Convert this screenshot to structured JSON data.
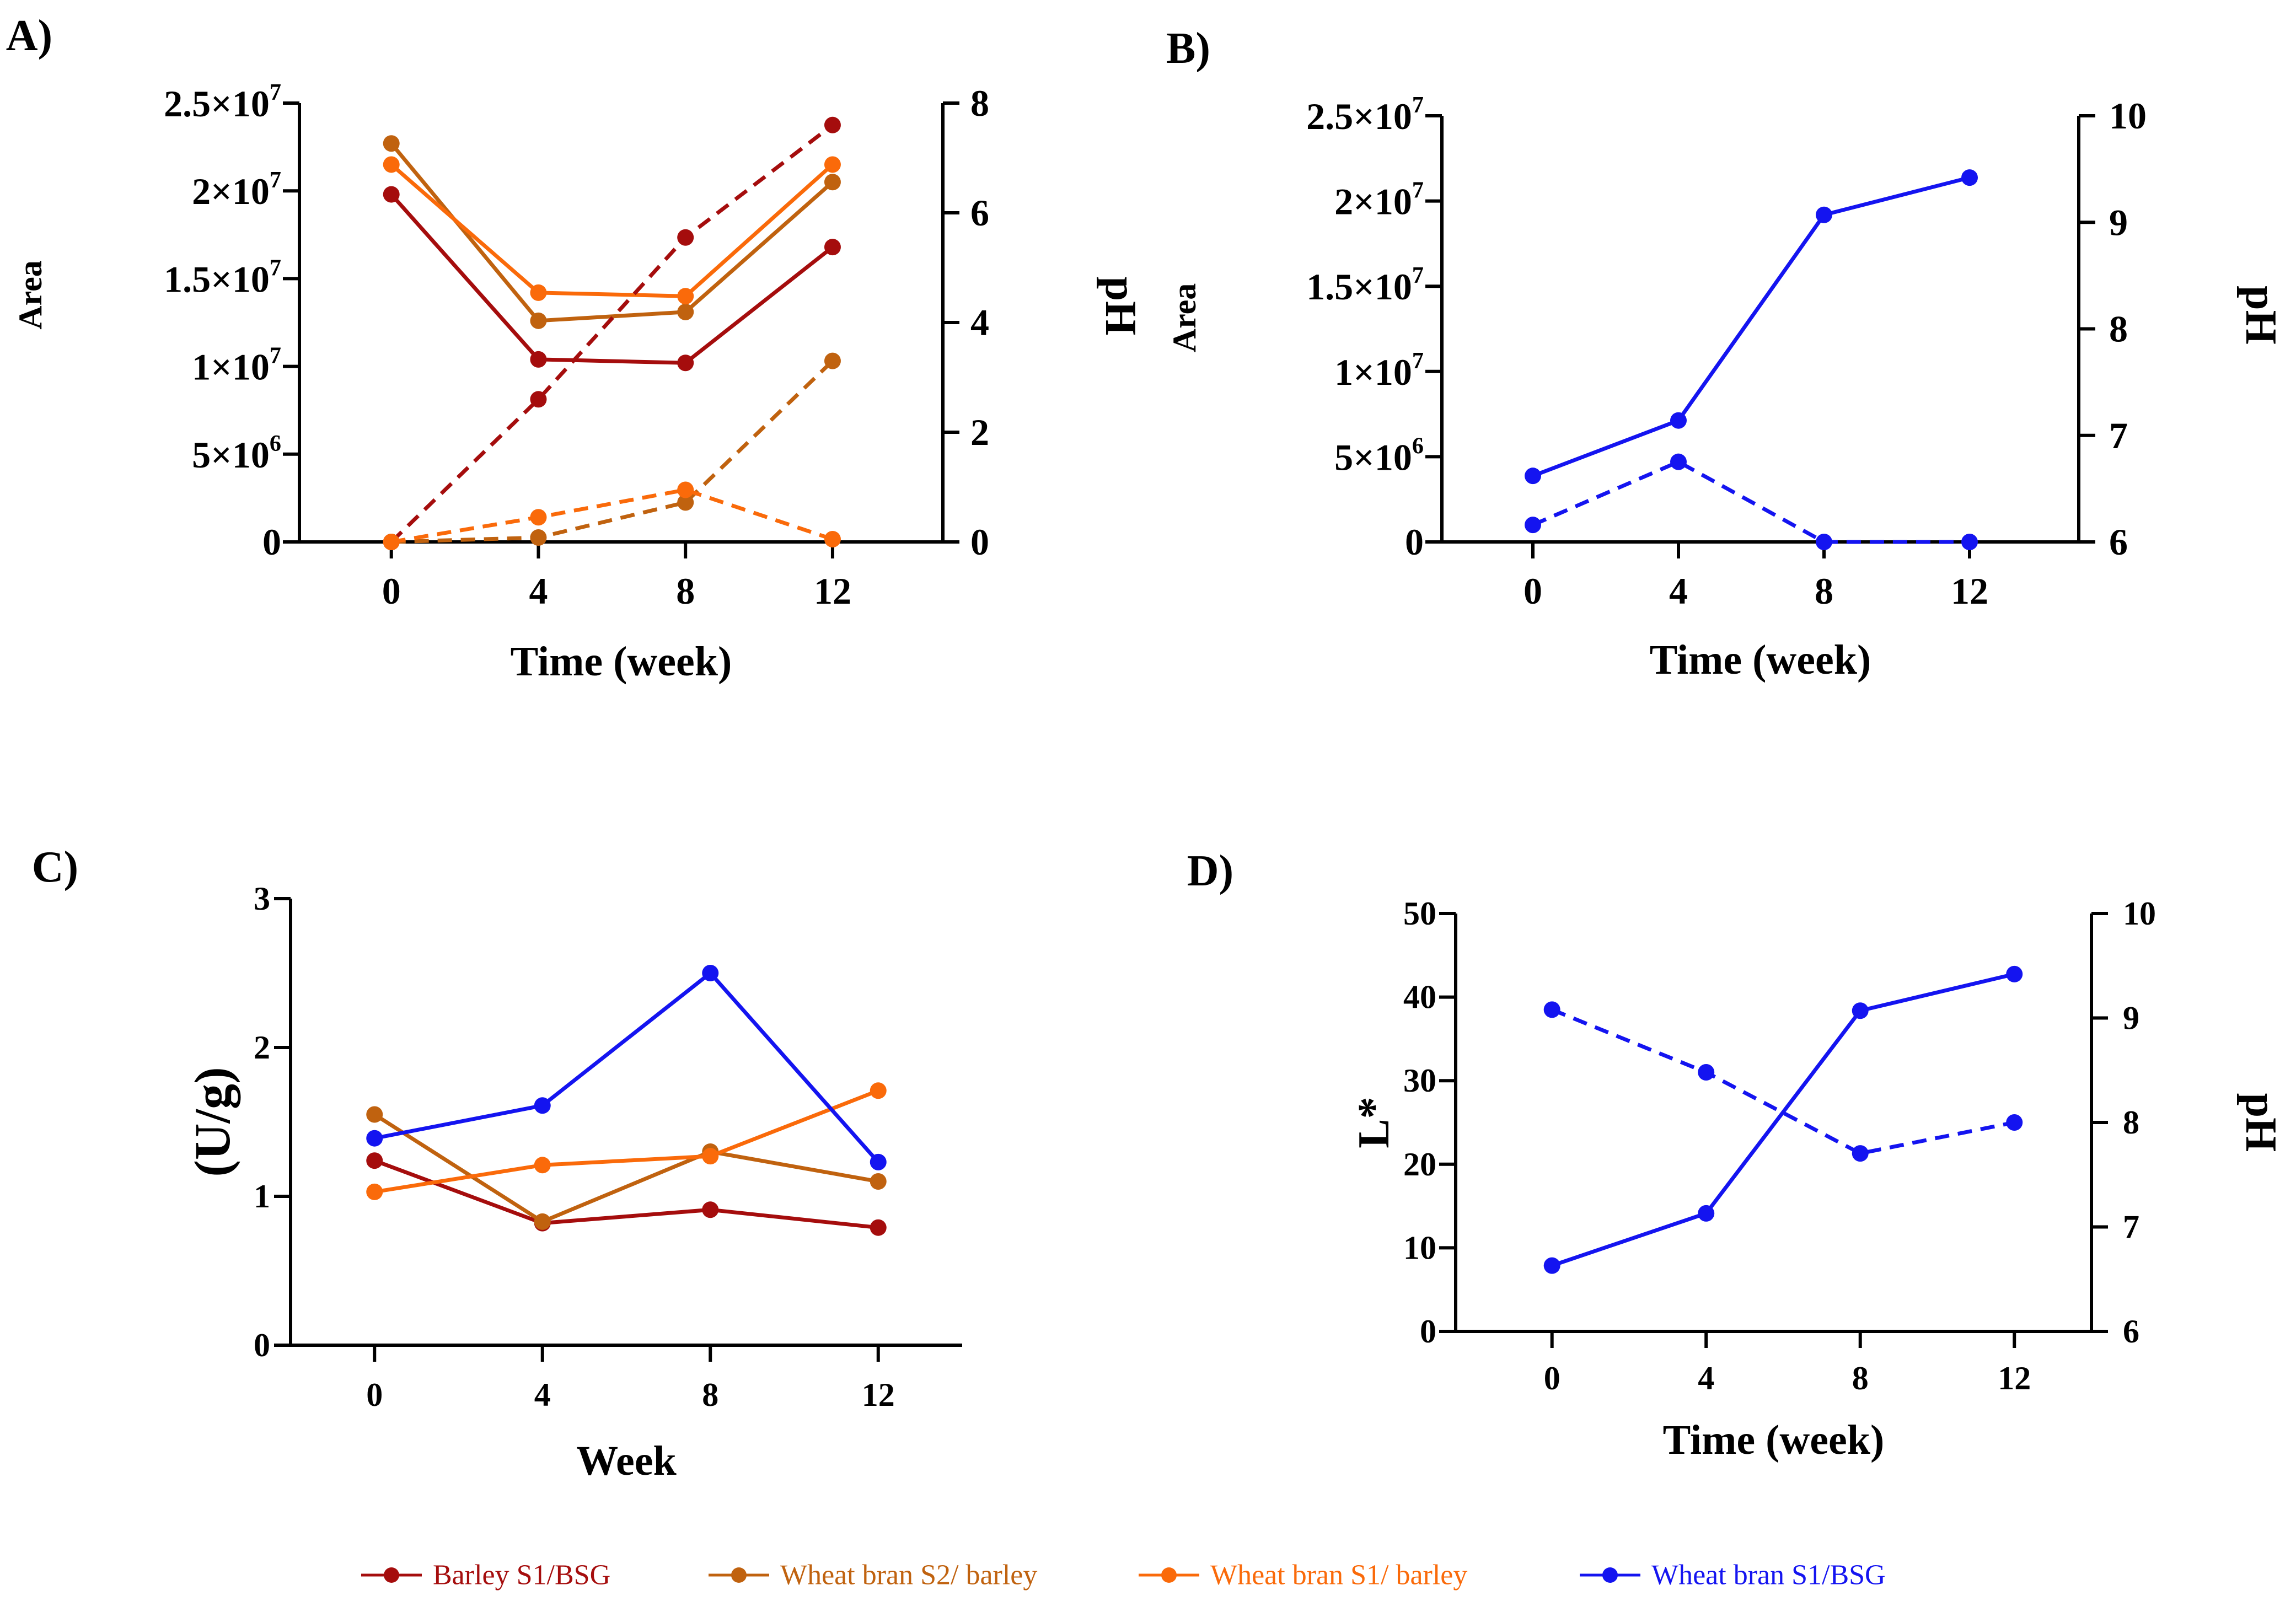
{
  "chart_data": [
    {
      "id": "A",
      "panel_label": "A)",
      "type": "line",
      "xlabel": "Time (week)",
      "ylabel": "Area",
      "y2label": "pH",
      "x": [
        0,
        4,
        8,
        12
      ],
      "xticks": [
        "0",
        "4",
        "8",
        "12"
      ],
      "xlim": [
        -2.5,
        15
      ],
      "ylim": [
        0,
        25000000
      ],
      "y2lim": [
        0,
        8
      ],
      "yticks": [
        {
          "v": 0,
          "label": "0"
        },
        {
          "v": 5000000,
          "label": "5×10",
          "sup": "6"
        },
        {
          "v": 10000000,
          "label": "1×10",
          "sup": "7"
        },
        {
          "v": 15000000,
          "label": "1.5×10",
          "sup": "7"
        },
        {
          "v": 20000000,
          "label": "2×10",
          "sup": "7"
        },
        {
          "v": 25000000,
          "label": "2.5×10",
          "sup": "7"
        }
      ],
      "y2ticks": [
        "0",
        "2",
        "4",
        "6",
        "8"
      ],
      "series": [
        {
          "name": "Barley S1/BSG area",
          "color": "#a50d0d",
          "dash": false,
          "axis": "y",
          "values": [
            19800000,
            10400000,
            10200000,
            16800000
          ]
        },
        {
          "name": "Wheat bran S2/ barley area",
          "color": "#c0620f",
          "dash": false,
          "axis": "y",
          "values": [
            22700000,
            12600000,
            13100000,
            20500000
          ]
        },
        {
          "name": "Wheat bran S1/ barley area",
          "color": "#fa6a0a",
          "dash": false,
          "axis": "y",
          "values": [
            21500000,
            14200000,
            14000000,
            21500000
          ]
        },
        {
          "name": "Barley S1/BSG pH",
          "color": "#a50d0d",
          "dash": true,
          "axis": "y2",
          "values": [
            0,
            2.6,
            5.55,
            7.6
          ]
        },
        {
          "name": "Wheat bran S2/ barley pH",
          "color": "#c0620f",
          "dash": true,
          "axis": "y2",
          "values": [
            0,
            0.08,
            0.72,
            3.3
          ]
        },
        {
          "name": "Wheat bran S1/ barley pH",
          "color": "#fa6a0a",
          "dash": true,
          "axis": "y2",
          "values": [
            0,
            0.45,
            0.95,
            0.05
          ]
        }
      ]
    },
    {
      "id": "B",
      "panel_label": "B)",
      "type": "line",
      "xlabel": "Time (week)",
      "ylabel": "Area",
      "y2label": "pH",
      "x": [
        0,
        4,
        8,
        12
      ],
      "xticks": [
        "0",
        "4",
        "8",
        "12"
      ],
      "xlim": [
        -2.5,
        15
      ],
      "ylim": [
        0,
        25000000
      ],
      "y2lim": [
        6,
        10
      ],
      "yticks": [
        {
          "v": 0,
          "label": "0"
        },
        {
          "v": 5000000,
          "label": "5×10",
          "sup": "6"
        },
        {
          "v": 10000000,
          "label": "1×10",
          "sup": "7"
        },
        {
          "v": 15000000,
          "label": "1.5×10",
          "sup": "7"
        },
        {
          "v": 20000000,
          "label": "2×10",
          "sup": "7"
        },
        {
          "v": 25000000,
          "label": "2.5×10",
          "sup": "7"
        }
      ],
      "y2ticks": [
        "6",
        "7",
        "8",
        "9",
        "10"
      ],
      "series": [
        {
          "name": "Wheat bran S1/BSG pH",
          "color": "#1414f0",
          "dash": false,
          "axis": "y2",
          "values": [
            6.62,
            7.14,
            9.07,
            9.42
          ]
        },
        {
          "name": "Wheat bran S1/BSG area",
          "color": "#1414f0",
          "dash": true,
          "axis": "y",
          "values": [
            1000000,
            4700000,
            0,
            0
          ]
        }
      ]
    },
    {
      "id": "C",
      "panel_label": "C)",
      "type": "line",
      "xlabel": "Week",
      "ylabel": "(U/g)",
      "x": [
        0,
        4,
        8,
        12
      ],
      "xticks": [
        "0",
        "4",
        "8",
        "12"
      ],
      "xlim": [
        -2,
        14
      ],
      "ylim": [
        0,
        3
      ],
      "yticks": [
        {
          "v": 0,
          "label": "0"
        },
        {
          "v": 1,
          "label": "1"
        },
        {
          "v": 2,
          "label": "2"
        },
        {
          "v": 3,
          "label": "3"
        }
      ],
      "series": [
        {
          "name": "Barley S1/BSG",
          "color": "#a50d0d",
          "dash": false,
          "axis": "y",
          "values": [
            1.24,
            0.82,
            0.91,
            0.79
          ]
        },
        {
          "name": "Wheat bran S2/ barley",
          "color": "#c0620f",
          "dash": false,
          "axis": "y",
          "values": [
            1.55,
            0.83,
            1.3,
            1.1
          ]
        },
        {
          "name": "Wheat bran S1/ barley",
          "color": "#fa6a0a",
          "dash": false,
          "axis": "y",
          "values": [
            1.03,
            1.21,
            1.27,
            1.71
          ]
        },
        {
          "name": "Wheat bran S1/BSG",
          "color": "#1414f0",
          "dash": false,
          "axis": "y",
          "values": [
            1.39,
            1.61,
            2.5,
            1.23
          ]
        }
      ]
    },
    {
      "id": "D",
      "panel_label": "D)",
      "type": "line",
      "xlabel": "Time (week)",
      "ylabel": "L*",
      "y2label": "pH",
      "x": [
        0,
        4,
        8,
        12
      ],
      "xticks": [
        "0",
        "4",
        "8",
        "12"
      ],
      "xlim": [
        -2.5,
        14
      ],
      "ylim": [
        0,
        50
      ],
      "y2lim": [
        6,
        10
      ],
      "yticks": [
        {
          "v": 0,
          "label": "0"
        },
        {
          "v": 10,
          "label": "10"
        },
        {
          "v": 20,
          "label": "20"
        },
        {
          "v": 30,
          "label": "30"
        },
        {
          "v": 40,
          "label": "40"
        },
        {
          "v": 50,
          "label": "50"
        }
      ],
      "y2ticks": [
        "6",
        "7",
        "8",
        "9",
        "10"
      ],
      "series": [
        {
          "name": "Wheat bran S1/BSG pH",
          "color": "#1414f0",
          "dash": false,
          "axis": "y2",
          "values": [
            6.63,
            7.13,
            9.07,
            9.42
          ]
        },
        {
          "name": "Wheat bran S1/BSG L*",
          "color": "#1414f0",
          "dash": true,
          "axis": "y",
          "values": [
            38.5,
            31,
            21.3,
            25
          ]
        }
      ]
    }
  ],
  "legend": [
    {
      "label": "Barley S1/BSG",
      "color": "#a50d0d"
    },
    {
      "label": "Wheat bran S2/ barley",
      "color": "#c0620f"
    },
    {
      "label": "Wheat bran S1/ barley",
      "color": "#fa6a0a"
    },
    {
      "label": "Wheat bran S1/BSG",
      "color": "#1414f0"
    }
  ]
}
